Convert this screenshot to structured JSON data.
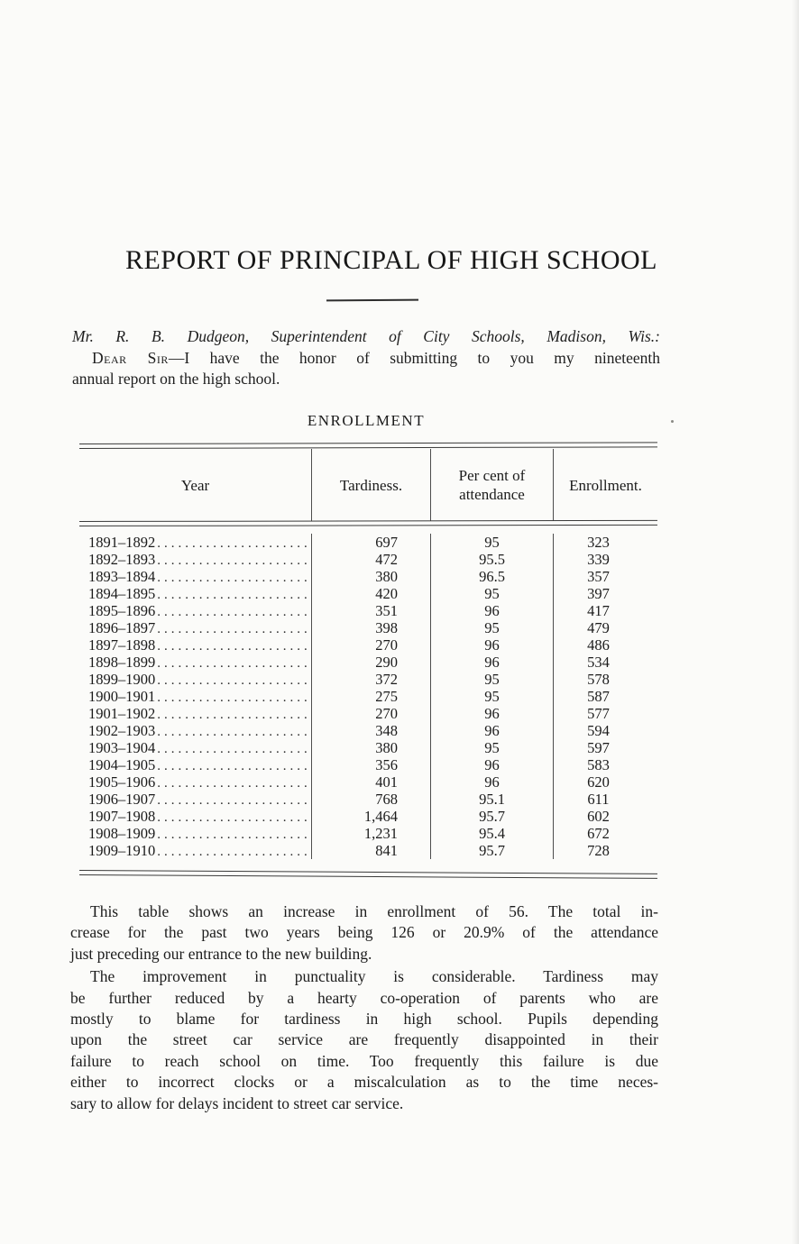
{
  "title": "REPORT OF PRINCIPAL OF HIGH SCHOOL",
  "letter": {
    "address": "Mr. R. B. Dudgeon, Superintendent of City Schools, Madison, Wis.:",
    "greeting": "Dear Sir",
    "line1_rest": "—I have the honor of submitting to you my nineteenth",
    "line2": "annual report on the high school."
  },
  "section_heading": "ENROLLMENT",
  "table": {
    "columns": [
      "Year",
      "Tardiness.",
      "Per cent of attendance",
      "Enrollment."
    ],
    "rows": [
      [
        "1891–1892",
        "697",
        "95",
        "323"
      ],
      [
        "1892–1893",
        "472",
        "95.5",
        "339"
      ],
      [
        "1893–1894",
        "380",
        "96.5",
        "357"
      ],
      [
        "1894–1895",
        "420",
        "95",
        "397"
      ],
      [
        "1895–1896",
        "351",
        "96",
        "417"
      ],
      [
        "1896–1897",
        "398",
        "95",
        "479"
      ],
      [
        "1897–1898",
        "270",
        "96",
        "486"
      ],
      [
        "1898–1899",
        "290",
        "96",
        "534"
      ],
      [
        "1899–1900",
        "372",
        "95",
        "578"
      ],
      [
        "1900–1901",
        "275",
        "95",
        "587"
      ],
      [
        "1901–1902",
        "270",
        "96",
        "577"
      ],
      [
        "1902–1903",
        "348",
        "96",
        "594"
      ],
      [
        "1903–1904",
        "380",
        "95",
        "597"
      ],
      [
        "1904–1905",
        "356",
        "96",
        "583"
      ],
      [
        "1905–1906",
        "401",
        "96",
        "620"
      ],
      [
        "1906–1907",
        "768",
        "95.1",
        "611"
      ],
      [
        "1907–1908",
        "1,464",
        "95.7",
        "602"
      ],
      [
        "1908–1909",
        "1,231",
        "95.4",
        "672"
      ],
      [
        "1909–1910",
        "841",
        "95.7",
        "728"
      ]
    ]
  },
  "paragraphs": [
    [
      "This table shows an increase in enrollment of 56. The total in-",
      "crease for the past two years being 126 or 20.9% of the attendance",
      "just preceding our entrance to the new building."
    ],
    [
      "The improvement in punctuality is considerable. Tardiness may",
      "be further reduced by a hearty co-operation of parents who are",
      "mostly to blame for tardiness in high school. Pupils depending",
      "upon the street car service are frequently disappointed in their",
      "failure to reach school on time. Too frequently this failure is due",
      "either to incorrect clocks or a miscalculation as to the time neces-",
      "sary to allow for delays incident to street car service."
    ]
  ]
}
